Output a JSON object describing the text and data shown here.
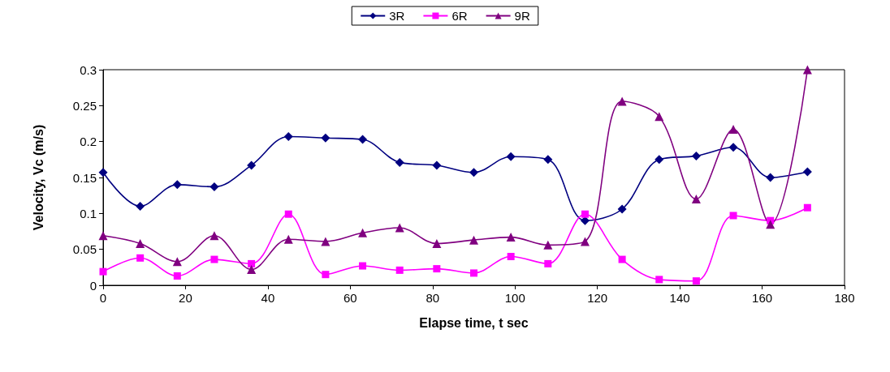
{
  "chart_data": {
    "type": "line",
    "xlabel": "Elapse time, t sec",
    "ylabel": "Velocity, Vc (m/s)",
    "x": [
      0,
      9,
      18,
      27,
      36,
      45,
      54,
      63,
      72,
      81,
      90,
      99,
      108,
      117,
      126,
      135,
      144,
      153,
      162,
      171
    ],
    "series": [
      {
        "name": "3R",
        "color": "#000080",
        "marker": "diamond",
        "values": [
          0.157,
          0.11,
          0.14,
          0.137,
          0.167,
          0.207,
          0.205,
          0.203,
          0.171,
          0.167,
          0.157,
          0.179,
          0.175,
          0.09,
          0.106,
          0.175,
          0.18,
          0.192,
          0.15,
          0.158
        ]
      },
      {
        "name": "6R",
        "color": "#ff00ff",
        "marker": "square",
        "values": [
          0.019,
          0.038,
          0.013,
          0.036,
          0.03,
          0.099,
          0.015,
          0.027,
          0.021,
          0.023,
          0.017,
          0.04,
          0.03,
          0.099,
          0.036,
          0.008,
          0.006,
          0.097,
          0.09,
          0.108
        ]
      },
      {
        "name": "9R",
        "color": "#800080",
        "marker": "triangle",
        "values": [
          0.069,
          0.058,
          0.033,
          0.069,
          0.022,
          0.064,
          0.061,
          0.073,
          0.08,
          0.058,
          0.063,
          0.067,
          0.056,
          0.061,
          0.256,
          0.235,
          0.12,
          0.217,
          0.085,
          0.3
        ]
      }
    ],
    "xlim": [
      0,
      180
    ],
    "xticks": [
      0,
      20,
      40,
      60,
      80,
      100,
      120,
      140,
      160,
      180
    ],
    "ylim": [
      0,
      0.3
    ],
    "yticks": [
      0,
      0.05,
      0.1,
      0.15,
      0.2,
      0.25,
      0.3
    ],
    "grid": false,
    "legend": "top",
    "line_style": "solid"
  }
}
